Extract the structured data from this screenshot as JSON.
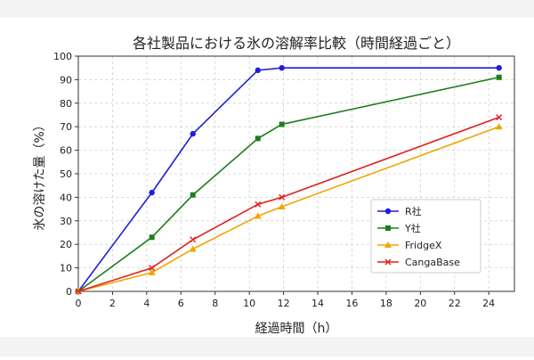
{
  "chart_data": {
    "type": "line",
    "title": "各社製品における氷の溶解率比較（時間経過ごと）",
    "xlabel": "経過時間（h）",
    "ylabel": "氷の溶けた量（%）",
    "xlim": [
      0,
      25.5
    ],
    "ylim": [
      0,
      100
    ],
    "xticks": [
      0,
      2,
      4,
      6,
      8,
      10,
      12,
      14,
      16,
      18,
      20,
      22,
      24
    ],
    "yticks": [
      0,
      10,
      20,
      30,
      40,
      50,
      60,
      70,
      80,
      90,
      100
    ],
    "grid": true,
    "legend_position": "lower-right",
    "series": [
      {
        "name": "R社",
        "color": "#1f1fdc",
        "marker": "circle",
        "x": [
          0,
          4.3,
          6.7,
          10.5,
          11.9,
          24.6
        ],
        "y": [
          0,
          42,
          67,
          94,
          95,
          95
        ]
      },
      {
        "name": "Y社",
        "color": "#1e7d1e",
        "marker": "square",
        "x": [
          0,
          4.3,
          6.7,
          10.5,
          11.9,
          24.6
        ],
        "y": [
          0,
          23,
          41,
          65,
          71,
          91
        ]
      },
      {
        "name": "FridgeX",
        "color": "#f0a500",
        "marker": "triangle",
        "x": [
          0,
          4.3,
          6.7,
          10.5,
          11.9,
          24.6
        ],
        "y": [
          0,
          8,
          18,
          32,
          36,
          70
        ]
      },
      {
        "name": "CangaBase",
        "color": "#e02020",
        "marker": "x",
        "x": [
          0,
          4.3,
          6.7,
          10.5,
          11.9,
          24.6
        ],
        "y": [
          0,
          10,
          22,
          37,
          40,
          74
        ]
      }
    ]
  }
}
